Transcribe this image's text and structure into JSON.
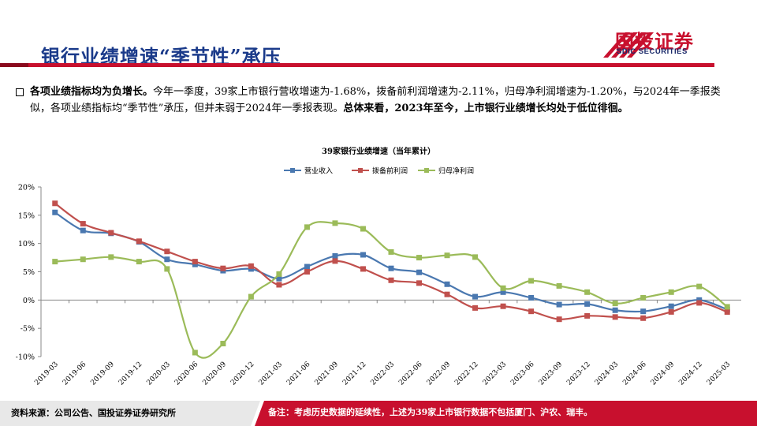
{
  "header": {
    "title": "银行业绩增速“季节性”承压",
    "logo_cn": "国投证券",
    "logo_en": "SDIC SECURITIES"
  },
  "summary": {
    "lead": "各项业绩指标均为负增长。",
    "body": "今年一季度，39家上市银行营收增速为-1.68%，拨备前利润增速为-2.11%，归母净利润增速为-1.20%，与2024年一季报类似，各项业绩指标均“季节性”承压，但并未弱于2024年一季报表现。",
    "conclusion": "总体来看，2023年至今，上市银行业绩增长均处于低位徘徊。"
  },
  "footer": {
    "source": "资料来源：公司公告、国投证券证券研究所",
    "note": "备注：考虑历史数据的延续性，上述为39家上市银行数据不包括厦门、沪农、瑞丰。"
  },
  "colors": {
    "brand_red": "#c8102e",
    "title_blue": "#1a3a8a",
    "series_blue": "#4a78b0",
    "series_red": "#c0504d",
    "series_green": "#9bbb59"
  },
  "chart_data": {
    "type": "line",
    "title": "39家银行业绩增速（当年累计）",
    "x": [
      "2019-03",
      "2019-06",
      "2019-09",
      "2019-12",
      "2020-03",
      "2020-06",
      "2020-09",
      "2020-12",
      "2021-03",
      "2021-06",
      "2021-09",
      "2021-12",
      "2022-03",
      "2022-06",
      "2022-09",
      "2022-12",
      "2023-03",
      "2023-06",
      "2023-09",
      "2023-12",
      "2024-03",
      "2024-06",
      "2024-09",
      "2024-12",
      "2025-03"
    ],
    "series": [
      {
        "name": "营业收入",
        "color": "#4a78b0",
        "marker": "square",
        "values": [
          15.5,
          12.3,
          11.8,
          10.3,
          7.2,
          6.3,
          5.2,
          5.5,
          3.8,
          5.9,
          7.8,
          8.0,
          5.6,
          4.9,
          2.8,
          0.6,
          1.4,
          0.4,
          -0.8,
          -0.7,
          -1.8,
          -2.0,
          -1.1,
          0.0,
          -1.68
        ]
      },
      {
        "name": "拨备前利润",
        "color": "#c0504d",
        "marker": "square",
        "values": [
          17.1,
          13.5,
          11.9,
          10.4,
          8.6,
          6.8,
          5.6,
          6.0,
          2.7,
          5.0,
          6.9,
          5.5,
          3.5,
          3.0,
          1.0,
          -1.4,
          -1.1,
          -2.0,
          -3.4,
          -2.8,
          -3.0,
          -3.2,
          -2.1,
          -0.5,
          -2.11
        ]
      },
      {
        "name": "归母净利润",
        "color": "#9bbb59",
        "marker": "square",
        "values": [
          6.8,
          7.2,
          7.6,
          6.8,
          5.5,
          -9.3,
          -7.7,
          0.6,
          4.6,
          12.9,
          13.6,
          12.6,
          8.5,
          7.5,
          7.9,
          7.6,
          2.1,
          3.4,
          2.5,
          1.4,
          -0.6,
          0.4,
          1.4,
          2.4,
          -1.2
        ]
      }
    ],
    "y_ticks": [
      "20%",
      "15%",
      "10%",
      "5%",
      "0%",
      "-5%",
      "-10%"
    ],
    "ylim": [
      -10,
      20
    ],
    "legend": "top-center",
    "grid": false
  }
}
